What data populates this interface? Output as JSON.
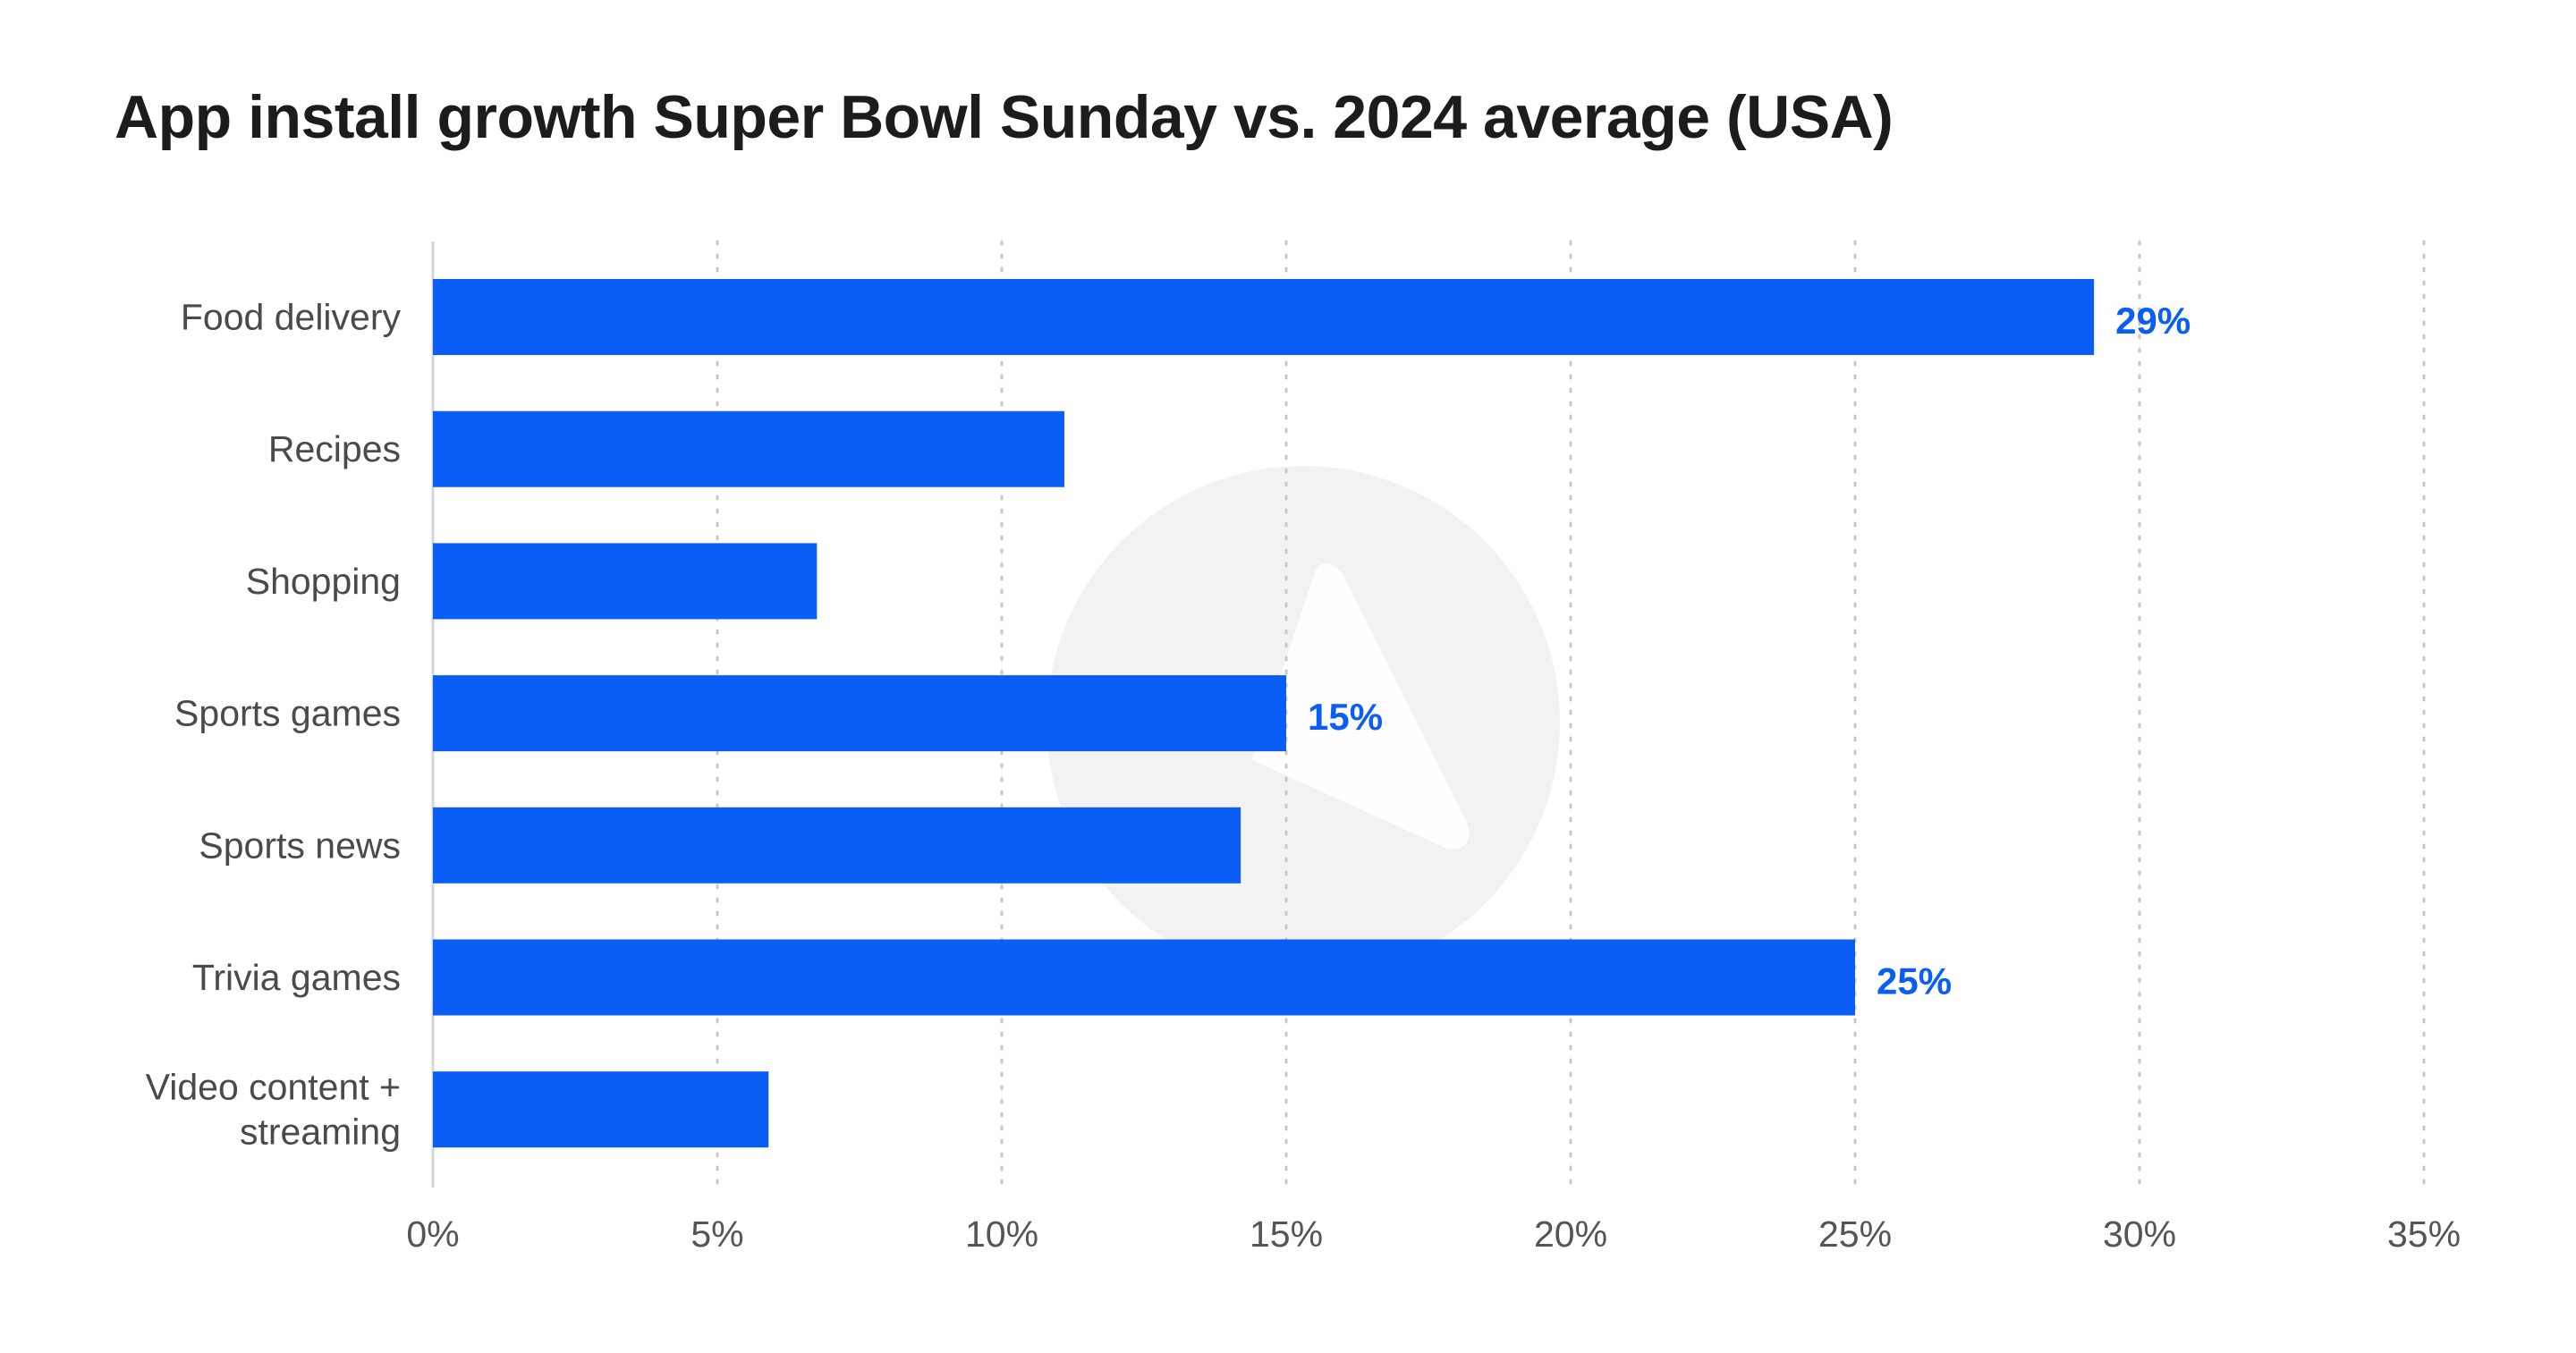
{
  "title": "App install growth Super Bowl Sunday vs. 2024 average (USA)",
  "colors": {
    "bar": "#0a5ef5",
    "value_label": "#0a5ef5",
    "grid": "#c8c8c8",
    "axis": "#d6d6d6",
    "watermark": "#f2f2f2"
  },
  "chart_data": {
    "type": "bar",
    "orientation": "horizontal",
    "title": "App install growth Super Bowl Sunday vs. 2024 average (USA)",
    "categories": [
      [
        "Food delivery"
      ],
      [
        "Recipes"
      ],
      [
        "Shopping"
      ],
      [
        "Sports games"
      ],
      [
        "Sports news"
      ],
      [
        "Trivia games"
      ],
      [
        "Video content +",
        "streaming"
      ]
    ],
    "values": [
      29.2,
      11.1,
      6.75,
      15.0,
      14.2,
      25.0,
      5.9
    ],
    "data_labels": [
      "29%",
      "",
      "",
      "15%",
      "",
      "25%",
      ""
    ],
    "xlim": [
      0,
      35
    ],
    "xticks": [
      0,
      5,
      10,
      15,
      20,
      25,
      30,
      35
    ],
    "xtick_labels": [
      "0%",
      "5%",
      "10%",
      "15%",
      "20%",
      "25%",
      "30%",
      "35%"
    ],
    "grid": "vertical dotted",
    "xlabel": "",
    "ylabel": ""
  }
}
